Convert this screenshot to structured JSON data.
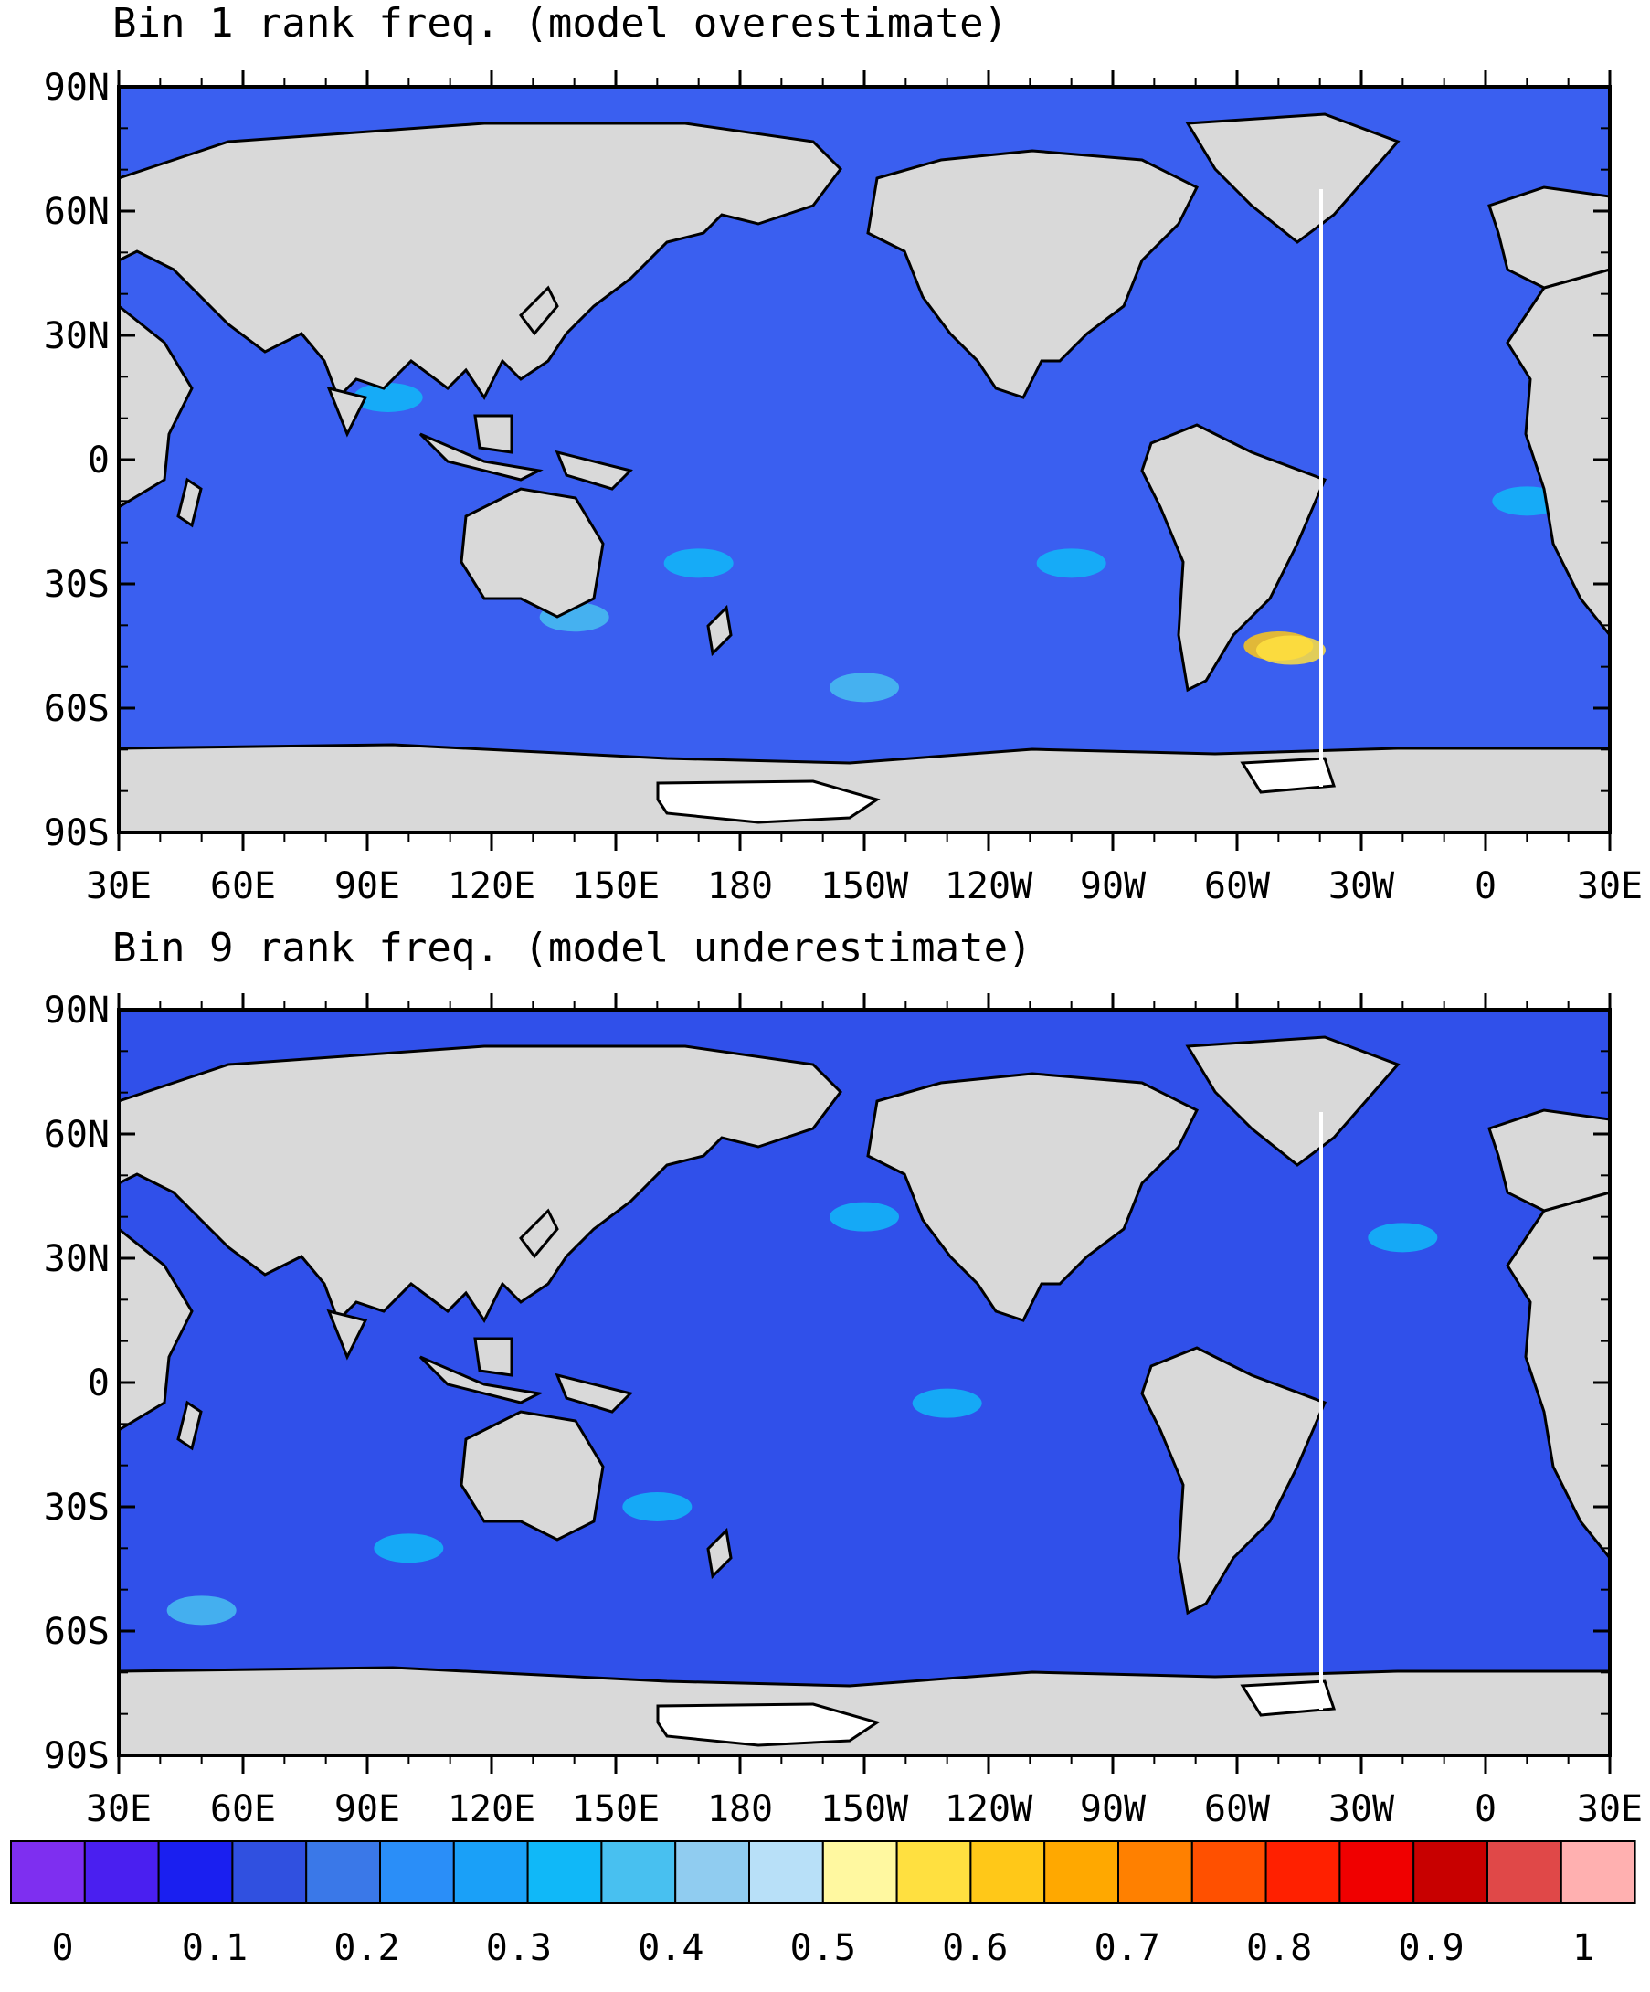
{
  "panels": [
    {
      "title": "Bin 1 rank freq. (model overestimate)",
      "ocean_color": "#3a5ff0",
      "anomaly_patches": [
        {
          "lon": -50,
          "lat": -45,
          "value": 0.6
        },
        {
          "lon": -47,
          "lat": -46,
          "value": 0.55
        },
        {
          "lon": 140,
          "lat": -38,
          "value": 0.35
        },
        {
          "lon": -150,
          "lat": -55,
          "value": 0.35
        },
        {
          "lon": 170,
          "lat": -25,
          "value": 0.3
        },
        {
          "lon": 95,
          "lat": 15,
          "value": 0.3
        },
        {
          "lon": -100,
          "lat": -25,
          "value": 0.3
        },
        {
          "lon": 10,
          "lat": -10,
          "value": 0.3
        }
      ]
    },
    {
      "title": "Bin 9 rank freq. (model underestimate)",
      "ocean_color": "#3050ea",
      "anomaly_patches": [
        {
          "lon": 50,
          "lat": -55,
          "value": 0.35
        },
        {
          "lon": 160,
          "lat": -30,
          "value": 0.3
        },
        {
          "lon": 100,
          "lat": -40,
          "value": 0.3
        },
        {
          "lon": -150,
          "lat": 40,
          "value": 0.3
        },
        {
          "lon": -130,
          "lat": -5,
          "value": 0.3
        },
        {
          "lon": -20,
          "lat": 35,
          "value": 0.3
        }
      ]
    }
  ],
  "axes": {
    "lat_ticks": [
      "90N",
      "60N",
      "30N",
      "0",
      "30S",
      "60S",
      "90S"
    ],
    "lon_ticks": [
      "30E",
      "60E",
      "90E",
      "120E",
      "150E",
      "180",
      "150W",
      "120W",
      "90W",
      "60W",
      "30W",
      "0",
      "30E"
    ],
    "lon_range": [
      30,
      390
    ],
    "lat_range": [
      -90,
      90
    ]
  },
  "colorbar": {
    "labels": [
      "0",
      "0.1",
      "0.2",
      "0.3",
      "0.4",
      "0.5",
      "0.6",
      "0.7",
      "0.8",
      "0.9",
      "1"
    ],
    "colors": [
      "#7e2ff0",
      "#4a1ff0",
      "#1a1ff0",
      "#3050e0",
      "#3a78e8",
      "#2a8ef8",
      "#1aa0f8",
      "#10b8f8",
      "#48c0f0",
      "#90ccf0",
      "#b8e0f8",
      "#fff8a0",
      "#ffe040",
      "#ffc818",
      "#ffa800",
      "#ff8000",
      "#ff5000",
      "#ff2000",
      "#f00000",
      "#c80000",
      "#e04848",
      "#ffb0b0"
    ],
    "range": [
      0,
      1
    ]
  },
  "colors": {
    "land": "#d9d9d9",
    "ice_shelf": "#ffffff"
  }
}
